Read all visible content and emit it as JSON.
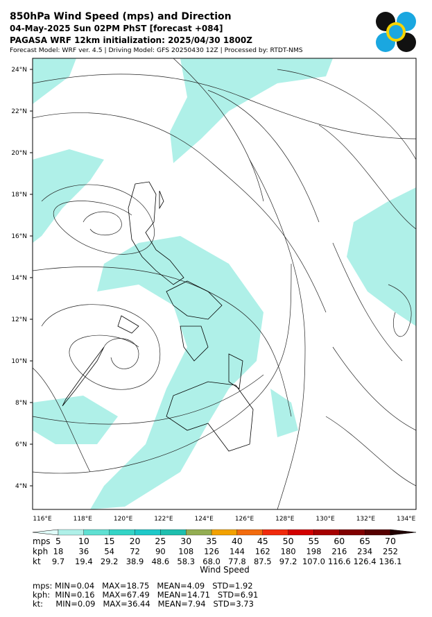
{
  "header": {
    "title": "850hPa Wind Speed (mps) and Direction",
    "line2": "04-May-2025 Sun 02PM PhST [forecast +084]",
    "line3": "PAGASA WRF 12km initialization: 2025/04/30 1800Z",
    "line4": "Forecast Model: WRF ver. 4.5 | Driving Model: GFS 20250430 12Z | Processed by: RTDT-NMS"
  },
  "map": {
    "lat_labels": [
      "24°N",
      "22°N",
      "20°N",
      "18°N",
      "16°N",
      "14°N",
      "12°N",
      "10°N",
      "8°N",
      "6°N",
      "4°N"
    ],
    "lon_labels": [
      "116°E",
      "118°E",
      "120°E",
      "122°E",
      "124°E",
      "126°E",
      "128°E",
      "130°E",
      "132°E",
      "134°E"
    ],
    "shade_color": "#aff0e8"
  },
  "colorbar": {
    "colors": [
      "#e0fbf8",
      "#aff0e8",
      "#5fe0d2",
      "#33d4c6",
      "#1ec9c9",
      "#1ebfae",
      "#93ad52",
      "#f2a100",
      "#f26b0e",
      "#f02a0c",
      "#d20000",
      "#a50000",
      "#800000",
      "#560000",
      "#200000"
    ],
    "rows": [
      {
        "unit": "mps",
        "labels": [
          "5",
          "10",
          "15",
          "20",
          "25",
          "30",
          "35",
          "40",
          "45",
          "50",
          "55",
          "60",
          "65",
          "70"
        ]
      },
      {
        "unit": "kph",
        "labels": [
          "18",
          "36",
          "54",
          "72",
          "90",
          "108",
          "126",
          "144",
          "162",
          "180",
          "198",
          "216",
          "234",
          "252"
        ]
      },
      {
        "unit": "kt",
        "labels": [
          "9.7",
          "19.4",
          "29.2",
          "38.9",
          "48.6",
          "58.3",
          "68.0",
          "77.8",
          "87.5",
          "97.2",
          "107.0",
          "116.6",
          "126.4",
          "136.1"
        ]
      }
    ],
    "title": "Wind Speed"
  },
  "stats": [
    "mps: MIN=0.04   MAX=18.75   MEAN=4.09   STD=1.92",
    "kph:  MIN=0.16   MAX=67.49   MEAN=14.71   STD=6.91",
    "kt:     MIN=0.09   MAX=36.44   MEAN=7.94   STD=3.73"
  ]
}
